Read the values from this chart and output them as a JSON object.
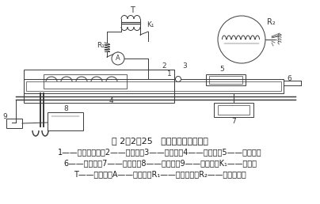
{
  "title": "图 2－2－25   煤尘爆炸鉴定实验仪",
  "caption_line1": "1——硬质玻璃管；2——加热器；3——冷藏瓶；4——高温计；5——试料管；",
  "caption_line2": "6——导气管；7——打气筒；8——滤尘箱；9——吸尘器；K₁——开关；",
  "caption_line3": "T——变压器；A——电流表；R₁——可变电阻；R₂——铂丝热电偶",
  "bg_color": "#ffffff",
  "text_color": "#1a1a1a",
  "diagram_color": "#3a3a3a",
  "font_size_caption": 7.0,
  "font_size_title": 8.0
}
